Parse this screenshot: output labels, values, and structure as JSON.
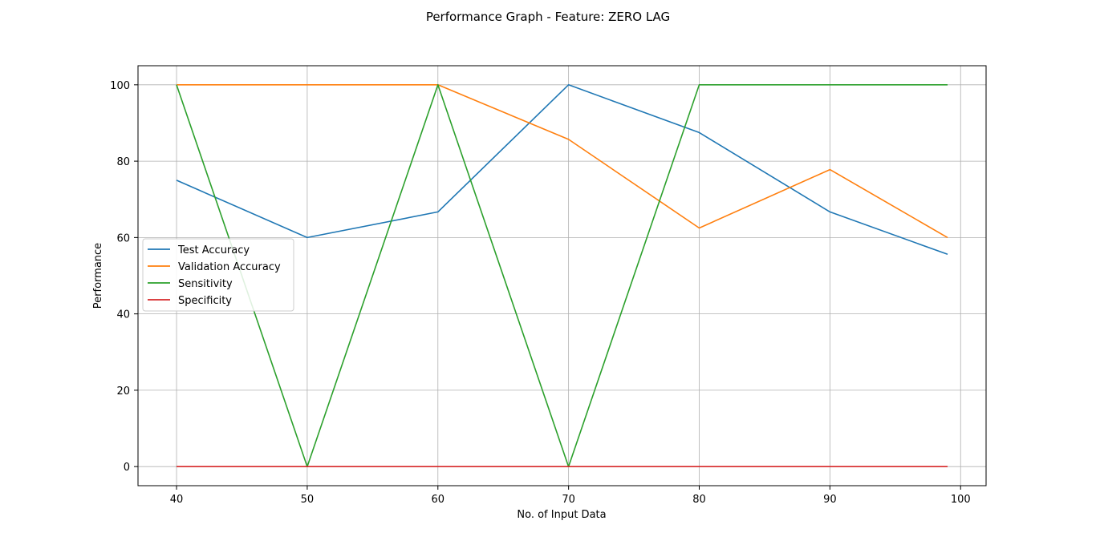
{
  "chart_data": {
    "type": "line",
    "title": "Performance Graph - Feature: ZERO LAG",
    "xlabel": "No. of Input Data",
    "ylabel": "Performance",
    "xlim": [
      37.05,
      101.95
    ],
    "ylim": [
      -5,
      105
    ],
    "xticks": [
      40,
      50,
      60,
      70,
      80,
      90,
      100
    ],
    "yticks": [
      0,
      20,
      40,
      60,
      80,
      100
    ],
    "grid": true,
    "legend_position": "center-left",
    "x": [
      40,
      50,
      60,
      70,
      80,
      90,
      99
    ],
    "series": [
      {
        "name": "Test Accuracy",
        "color": "#1f77b4",
        "values": [
          75,
          60,
          66.7,
          100,
          87.5,
          66.7,
          55.6
        ]
      },
      {
        "name": "Validation Accuracy",
        "color": "#ff7f0e",
        "values": [
          100,
          100,
          100,
          85.7,
          62.5,
          77.8,
          60
        ]
      },
      {
        "name": "Sensitivity",
        "color": "#2ca02c",
        "values": [
          100,
          0,
          100,
          0,
          100,
          100,
          100
        ]
      },
      {
        "name": "Specificity",
        "color": "#d62728",
        "values": [
          0,
          0,
          0,
          0,
          0,
          0,
          0
        ]
      }
    ]
  }
}
